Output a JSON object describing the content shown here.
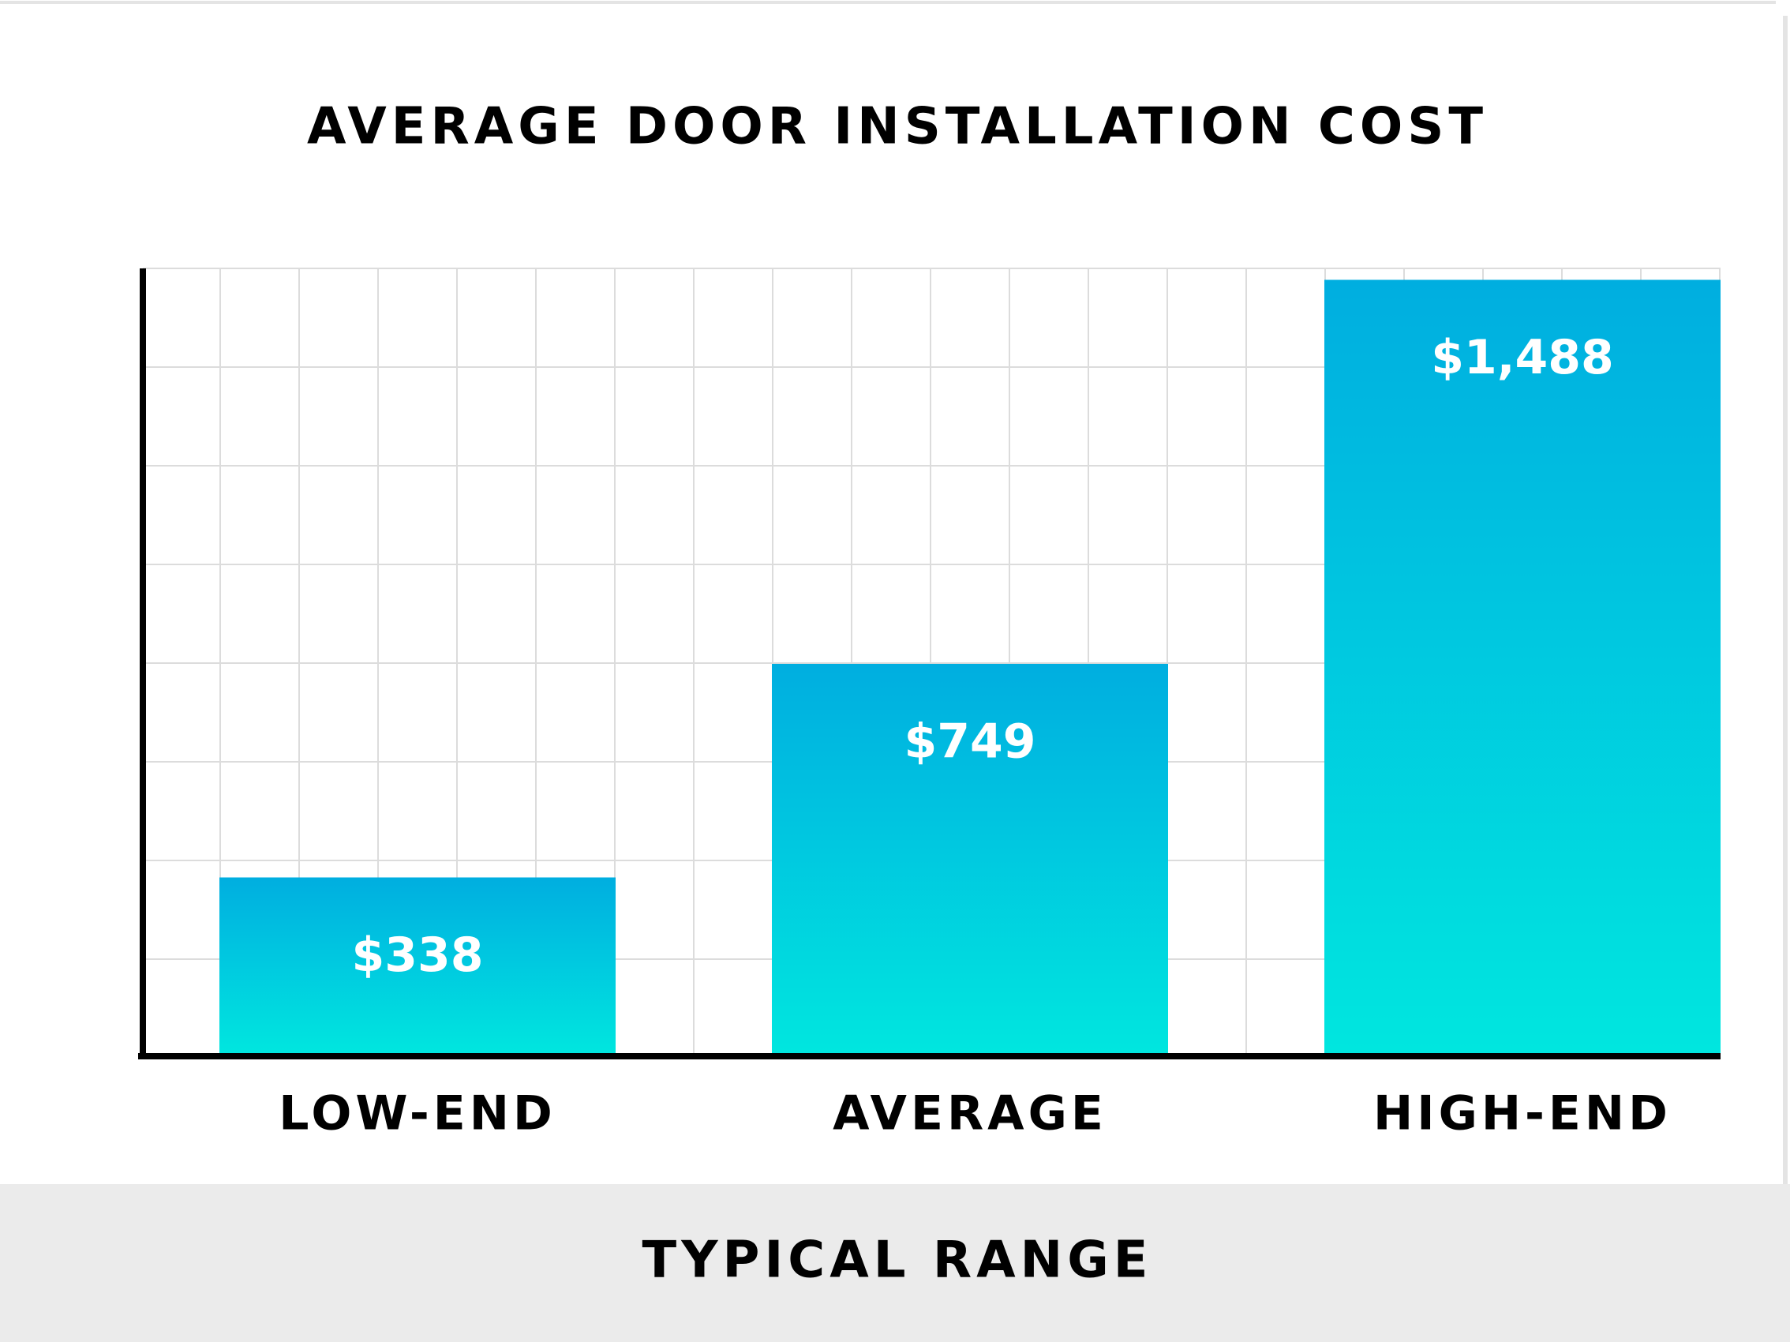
{
  "chart_data": {
    "type": "bar",
    "title": "AVERAGE DOOR INSTALLATION COST",
    "x_label": "TYPICAL RANGE",
    "categories": [
      "LOW-END",
      "AVERAGE",
      "HIGH-END"
    ],
    "values": [
      338,
      749,
      1488
    ],
    "value_labels": [
      "$338",
      "$749",
      "$1,488"
    ],
    "gradient": [
      "#00aee0",
      "#00e6df"
    ],
    "ylim": [
      0,
      1510
    ],
    "grid": true
  }
}
